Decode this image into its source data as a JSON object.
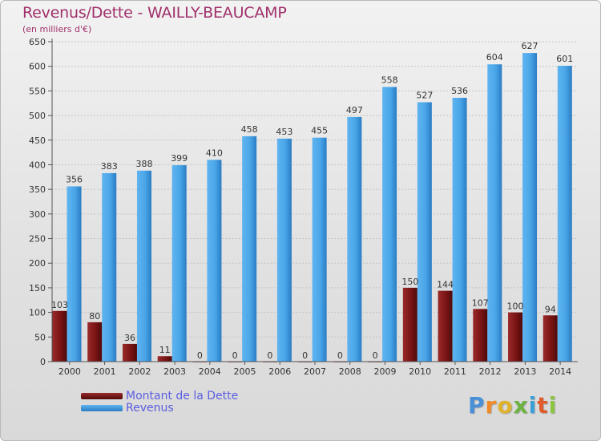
{
  "title": "Revenus/Dette - WAILLY-BEAUCAMP",
  "subtitle": "(en milliers d'€)",
  "logo": {
    "text": "Proxiti",
    "letters": [
      {
        "ch": "P",
        "color": "#4a90d9"
      },
      {
        "ch": "r",
        "color": "#f08a24"
      },
      {
        "ch": "o",
        "color": "#e0b32c"
      },
      {
        "ch": "x",
        "color": "#6cb33f"
      },
      {
        "ch": "i",
        "color": "#3aa0d8"
      },
      {
        "ch": "t",
        "color": "#e05a2a"
      },
      {
        "ch": "i",
        "color": "#8cc63f"
      }
    ]
  },
  "chart_data": {
    "type": "bar",
    "categories": [
      "2000",
      "2001",
      "2002",
      "2003",
      "2004",
      "2005",
      "2006",
      "2007",
      "2008",
      "2009",
      "2010",
      "2011",
      "2012",
      "2013",
      "2014"
    ],
    "series": [
      {
        "name": "Montant de la Dette",
        "color": "#7a1010",
        "values": [
          103,
          80,
          36,
          11,
          0,
          0,
          0,
          0,
          0,
          0,
          150,
          144,
          107,
          100,
          94
        ]
      },
      {
        "name": "Revenus",
        "color": "#3e9ae0",
        "values": [
          356,
          383,
          388,
          399,
          410,
          458,
          453,
          455,
          497,
          558,
          527,
          536,
          604,
          627,
          601
        ]
      }
    ],
    "ylim": [
      0,
      650
    ],
    "yticks": [
      0,
      50,
      100,
      150,
      200,
      250,
      300,
      350,
      400,
      450,
      500,
      550,
      600,
      650
    ],
    "grid": true,
    "legend_position": "bottom-left"
  }
}
